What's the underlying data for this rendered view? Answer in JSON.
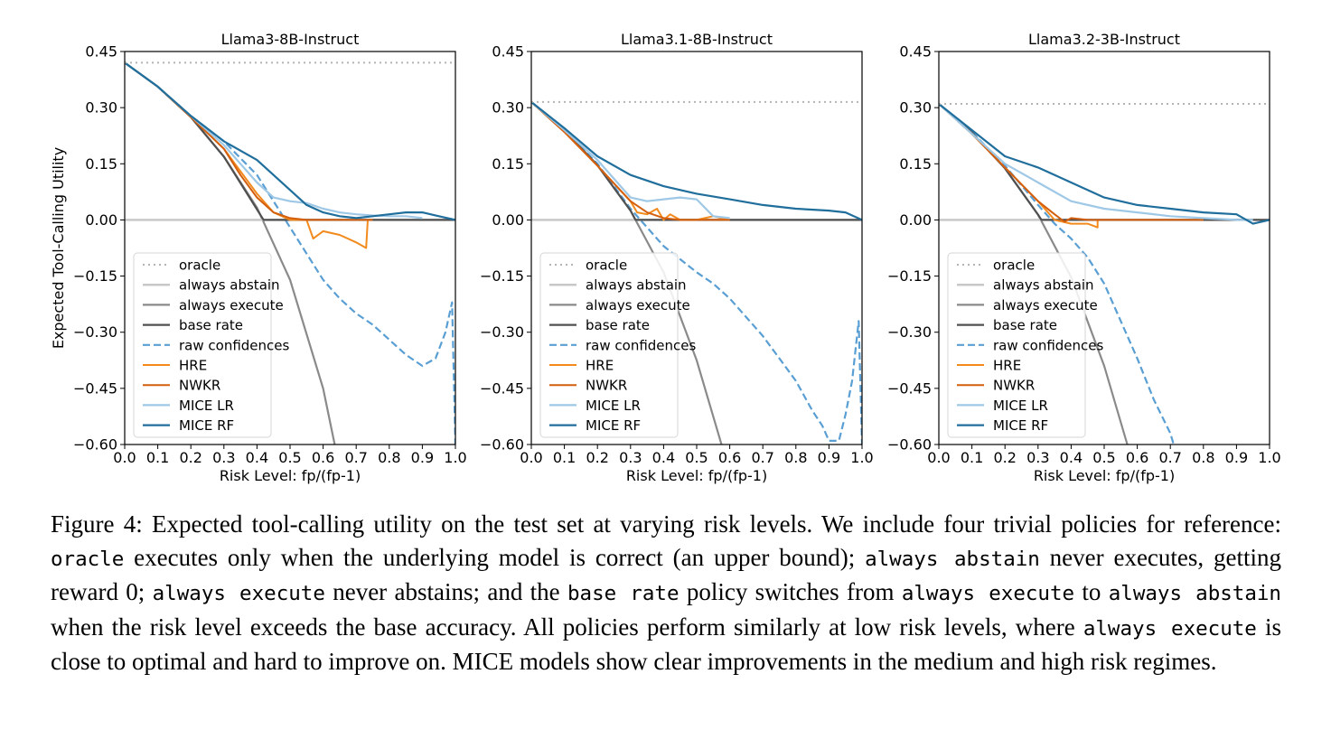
{
  "chart_data": [
    {
      "type": "line",
      "title": "Llama3-8B-Instruct",
      "xlabel": "Risk Level: fp/(fp-1)",
      "ylabel": "Expected Tool-Calling Utility",
      "xlim": [
        0.0,
        1.0
      ],
      "ylim": [
        -0.6,
        0.45
      ],
      "xticks": [
        "0.0",
        "0.1",
        "0.2",
        "0.3",
        "0.4",
        "0.5",
        "0.6",
        "0.7",
        "0.8",
        "0.9",
        "1.0"
      ],
      "yticks": [
        "0.45",
        "0.30",
        "0.15",
        "0.00",
        "−0.15",
        "−0.30",
        "−0.45",
        "−0.60"
      ],
      "grid": false,
      "legend_position": "lower-left",
      "series": [
        {
          "name": "oracle",
          "x": [
            0.0,
            1.0
          ],
          "y": [
            0.42,
            0.42
          ]
        },
        {
          "name": "always abstain",
          "x": [
            0.0,
            1.0
          ],
          "y": [
            0.0,
            0.0
          ]
        },
        {
          "name": "always execute",
          "x": [
            0.0,
            0.1,
            0.2,
            0.3,
            0.4,
            0.5,
            0.6,
            0.635
          ],
          "y": [
            0.42,
            0.356,
            0.275,
            0.169,
            0.033,
            -0.16,
            -0.45,
            -0.6
          ]
        },
        {
          "name": "base rate",
          "x": [
            0.0,
            0.1,
            0.2,
            0.3,
            0.42,
            0.42,
            1.0
          ],
          "y": [
            0.42,
            0.356,
            0.275,
            0.169,
            0.0,
            0.0,
            0.0
          ]
        },
        {
          "name": "raw confidences",
          "x": [
            0.0,
            0.1,
            0.2,
            0.3,
            0.4,
            0.45,
            0.5,
            0.55,
            0.6,
            0.65,
            0.7,
            0.75,
            0.8,
            0.85,
            0.9,
            0.94,
            0.97,
            0.99,
            1.0
          ],
          "y": [
            0.42,
            0.356,
            0.278,
            0.21,
            0.12,
            0.05,
            -0.02,
            -0.09,
            -0.16,
            -0.21,
            -0.25,
            -0.28,
            -0.32,
            -0.36,
            -0.39,
            -0.37,
            -0.3,
            -0.22,
            -0.6
          ]
        },
        {
          "name": "HRE",
          "x": [
            0.0,
            0.1,
            0.2,
            0.3,
            0.35,
            0.4,
            0.45,
            0.5,
            0.55,
            0.57,
            0.6,
            0.65,
            0.7,
            0.73,
            0.735
          ],
          "y": [
            0.42,
            0.356,
            0.275,
            0.19,
            0.13,
            0.07,
            0.02,
            0.0,
            0.0,
            -0.05,
            -0.03,
            -0.04,
            -0.06,
            -0.075,
            0.0
          ]
        },
        {
          "name": "NWKR",
          "x": [
            0.0,
            0.1,
            0.2,
            0.3,
            0.35,
            0.4,
            0.45,
            0.5,
            0.55,
            0.6,
            0.65,
            0.7,
            0.75
          ],
          "y": [
            0.42,
            0.356,
            0.275,
            0.19,
            0.12,
            0.06,
            0.02,
            0.005,
            0.0,
            0.0,
            0.0,
            0.0,
            0.0
          ]
        },
        {
          "name": "MICE LR",
          "x": [
            0.0,
            0.1,
            0.2,
            0.3,
            0.4,
            0.45,
            0.5,
            0.55,
            0.6,
            0.65,
            0.7,
            0.75,
            0.8,
            0.85,
            0.9
          ],
          "y": [
            0.42,
            0.356,
            0.278,
            0.2,
            0.1,
            0.06,
            0.05,
            0.045,
            0.03,
            0.02,
            0.015,
            0.012,
            0.01,
            0.01,
            0.005
          ]
        },
        {
          "name": "MICE RF",
          "x": [
            0.0,
            0.1,
            0.2,
            0.3,
            0.4,
            0.45,
            0.5,
            0.55,
            0.6,
            0.65,
            0.7,
            0.75,
            0.8,
            0.85,
            0.9,
            0.95,
            1.0
          ],
          "y": [
            0.42,
            0.356,
            0.278,
            0.21,
            0.16,
            0.12,
            0.08,
            0.04,
            0.02,
            0.01,
            0.005,
            0.01,
            0.015,
            0.02,
            0.02,
            0.01,
            0.0
          ]
        }
      ]
    },
    {
      "type": "line",
      "title": "Llama3.1-8B-Instruct",
      "xlabel": "Risk Level: fp/(fp-1)",
      "ylabel": "",
      "xlim": [
        0.0,
        1.0
      ],
      "ylim": [
        -0.6,
        0.45
      ],
      "xticks": [
        "0.0",
        "0.1",
        "0.2",
        "0.3",
        "0.4",
        "0.5",
        "0.6",
        "0.7",
        "0.8",
        "0.9",
        "1.0"
      ],
      "yticks": [
        "0.45",
        "0.30",
        "0.15",
        "0.00",
        "−0.15",
        "−0.30",
        "−0.45",
        "−0.60"
      ],
      "grid": false,
      "legend_position": "lower-left",
      "series": [
        {
          "name": "oracle",
          "x": [
            0.0,
            1.0
          ],
          "y": [
            0.315,
            0.315
          ]
        },
        {
          "name": "always abstain",
          "x": [
            0.0,
            1.0
          ],
          "y": [
            0.0,
            0.0
          ]
        },
        {
          "name": "always execute",
          "x": [
            0.0,
            0.1,
            0.2,
            0.3,
            0.4,
            0.5,
            0.575
          ],
          "y": [
            0.315,
            0.239,
            0.146,
            0.025,
            -0.14,
            -0.375,
            -0.6
          ]
        },
        {
          "name": "base rate",
          "x": [
            0.0,
            0.1,
            0.2,
            0.3,
            0.315,
            0.315,
            1.0
          ],
          "y": [
            0.315,
            0.239,
            0.146,
            0.025,
            0.0,
            0.0,
            0.0
          ]
        },
        {
          "name": "raw confidences",
          "x": [
            0.0,
            0.1,
            0.2,
            0.3,
            0.4,
            0.5,
            0.55,
            0.6,
            0.65,
            0.7,
            0.75,
            0.8,
            0.85,
            0.88,
            0.9,
            0.93,
            0.95,
            0.97,
            0.99,
            1.0
          ],
          "y": [
            0.315,
            0.24,
            0.15,
            0.03,
            -0.07,
            -0.14,
            -0.17,
            -0.21,
            -0.26,
            -0.31,
            -0.37,
            -0.43,
            -0.51,
            -0.55,
            -0.59,
            -0.59,
            -0.52,
            -0.43,
            -0.27,
            -0.6
          ]
        },
        {
          "name": "HRE",
          "x": [
            0.0,
            0.1,
            0.2,
            0.3,
            0.32,
            0.35,
            0.38,
            0.4,
            0.42,
            0.45,
            0.5,
            0.55,
            0.6
          ],
          "y": [
            0.315,
            0.235,
            0.145,
            0.05,
            0.02,
            0.015,
            0.03,
            0.0,
            0.015,
            0.0,
            0.0,
            0.01,
            0.0
          ]
        },
        {
          "name": "NWKR",
          "x": [
            0.0,
            0.1,
            0.2,
            0.3,
            0.35,
            0.4,
            0.45,
            0.5,
            0.6
          ],
          "y": [
            0.315,
            0.235,
            0.145,
            0.05,
            0.02,
            0.005,
            0.0,
            0.0,
            0.0
          ]
        },
        {
          "name": "MICE LR",
          "x": [
            0.0,
            0.1,
            0.2,
            0.3,
            0.35,
            0.4,
            0.45,
            0.5,
            0.55,
            0.6
          ],
          "y": [
            0.315,
            0.24,
            0.16,
            0.06,
            0.05,
            0.055,
            0.06,
            0.055,
            0.01,
            0.005
          ]
        },
        {
          "name": "MICE RF",
          "x": [
            0.0,
            0.1,
            0.2,
            0.3,
            0.4,
            0.5,
            0.6,
            0.7,
            0.8,
            0.9,
            0.95,
            1.0
          ],
          "y": [
            0.315,
            0.245,
            0.17,
            0.12,
            0.09,
            0.07,
            0.055,
            0.04,
            0.03,
            0.025,
            0.02,
            0.0
          ]
        }
      ]
    },
    {
      "type": "line",
      "title": "Llama3.2-3B-Instruct",
      "xlabel": "Risk Level: fp/(fp-1)",
      "ylabel": "",
      "xlim": [
        0.0,
        1.0
      ],
      "ylim": [
        -0.6,
        0.45
      ],
      "xticks": [
        "0.0",
        "0.1",
        "0.2",
        "0.3",
        "0.4",
        "0.5",
        "0.6",
        "0.7",
        "0.8",
        "0.9",
        "1.0"
      ],
      "yticks": [
        "0.45",
        "0.30",
        "0.15",
        "0.00",
        "−0.15",
        "−0.30",
        "−0.45",
        "−0.60"
      ],
      "grid": false,
      "legend_position": "lower-left",
      "series": [
        {
          "name": "oracle",
          "x": [
            0.0,
            1.0
          ],
          "y": [
            0.31,
            0.31
          ]
        },
        {
          "name": "always abstain",
          "x": [
            0.0,
            1.0
          ],
          "y": [
            0.0,
            0.0
          ]
        },
        {
          "name": "always execute",
          "x": [
            0.0,
            0.1,
            0.2,
            0.3,
            0.4,
            0.5,
            0.57
          ],
          "y": [
            0.31,
            0.233,
            0.138,
            0.014,
            -0.153,
            -0.39,
            -0.6
          ]
        },
        {
          "name": "base rate",
          "x": [
            0.0,
            0.1,
            0.2,
            0.3,
            0.31,
            0.31,
            1.0
          ],
          "y": [
            0.31,
            0.233,
            0.138,
            0.014,
            0.0,
            0.0,
            0.0
          ]
        },
        {
          "name": "raw confidences",
          "x": [
            0.0,
            0.1,
            0.2,
            0.3,
            0.35,
            0.4,
            0.45,
            0.5,
            0.55,
            0.6,
            0.65,
            0.7,
            0.71
          ],
          "y": [
            0.31,
            0.235,
            0.145,
            0.04,
            -0.01,
            -0.05,
            -0.1,
            -0.17,
            -0.27,
            -0.37,
            -0.48,
            -0.57,
            -0.6
          ]
        },
        {
          "name": "HRE",
          "x": [
            0.0,
            0.1,
            0.2,
            0.3,
            0.35,
            0.4,
            0.45,
            0.48,
            0.48
          ],
          "y": [
            0.31,
            0.23,
            0.14,
            0.05,
            0.0,
            -0.01,
            -0.01,
            -0.02,
            0.0
          ]
        },
        {
          "name": "NWKR",
          "x": [
            0.0,
            0.1,
            0.2,
            0.3,
            0.35,
            0.38,
            0.4,
            0.45,
            0.6,
            0.8
          ],
          "y": [
            0.31,
            0.23,
            0.14,
            0.05,
            0.015,
            -0.005,
            0.005,
            0.0,
            0.0,
            0.0
          ]
        },
        {
          "name": "MICE LR",
          "x": [
            0.0,
            0.1,
            0.2,
            0.3,
            0.4,
            0.5,
            0.6,
            0.7,
            0.8,
            0.9,
            0.95
          ],
          "y": [
            0.31,
            0.23,
            0.15,
            0.1,
            0.05,
            0.03,
            0.02,
            0.01,
            0.005,
            0.0,
            0.0
          ]
        },
        {
          "name": "MICE RF",
          "x": [
            0.0,
            0.1,
            0.2,
            0.3,
            0.4,
            0.5,
            0.6,
            0.7,
            0.8,
            0.9,
            0.95,
            1.0
          ],
          "y": [
            0.31,
            0.24,
            0.17,
            0.14,
            0.1,
            0.06,
            0.04,
            0.03,
            0.02,
            0.015,
            -0.01,
            0.0
          ]
        }
      ]
    }
  ],
  "colors": {
    "oracle": "#b4b4b4",
    "always abstain": "#c8c8c8",
    "always execute": "#8a8a8a",
    "base rate": "#505050",
    "raw confidences": "#5a9fd4",
    "HRE": "#f28a1e",
    "NWKR": "#d35f0e",
    "MICE LR": "#9ec8e6",
    "MICE RF": "#1f6e9c"
  },
  "caption": {
    "label": "Figure 4:",
    "s1": "Expected tool-calling utility on the test set at varying risk levels. We include four trivial policies for reference: ",
    "c_oracle": "oracle",
    "s2": " executes only when the underlying model is correct (an upper bound); ",
    "c_abstain1": "always abstain",
    "s3": " never executes, getting reward 0; ",
    "c_execute1": "always execute",
    "s4": " never abstains; and the ",
    "c_baserate": "base rate",
    "s5": " policy switches from ",
    "c_execute2": "always execute",
    "s6": " to ",
    "c_abstain2": "always abstain",
    "s7": " when the risk level exceeds the base accuracy. All policies perform similarly at low risk levels, where ",
    "c_execute3": "always execute",
    "s8": " is close to optimal and hard to improve on. MICE models show clear improvements in the medium and high risk regimes."
  }
}
